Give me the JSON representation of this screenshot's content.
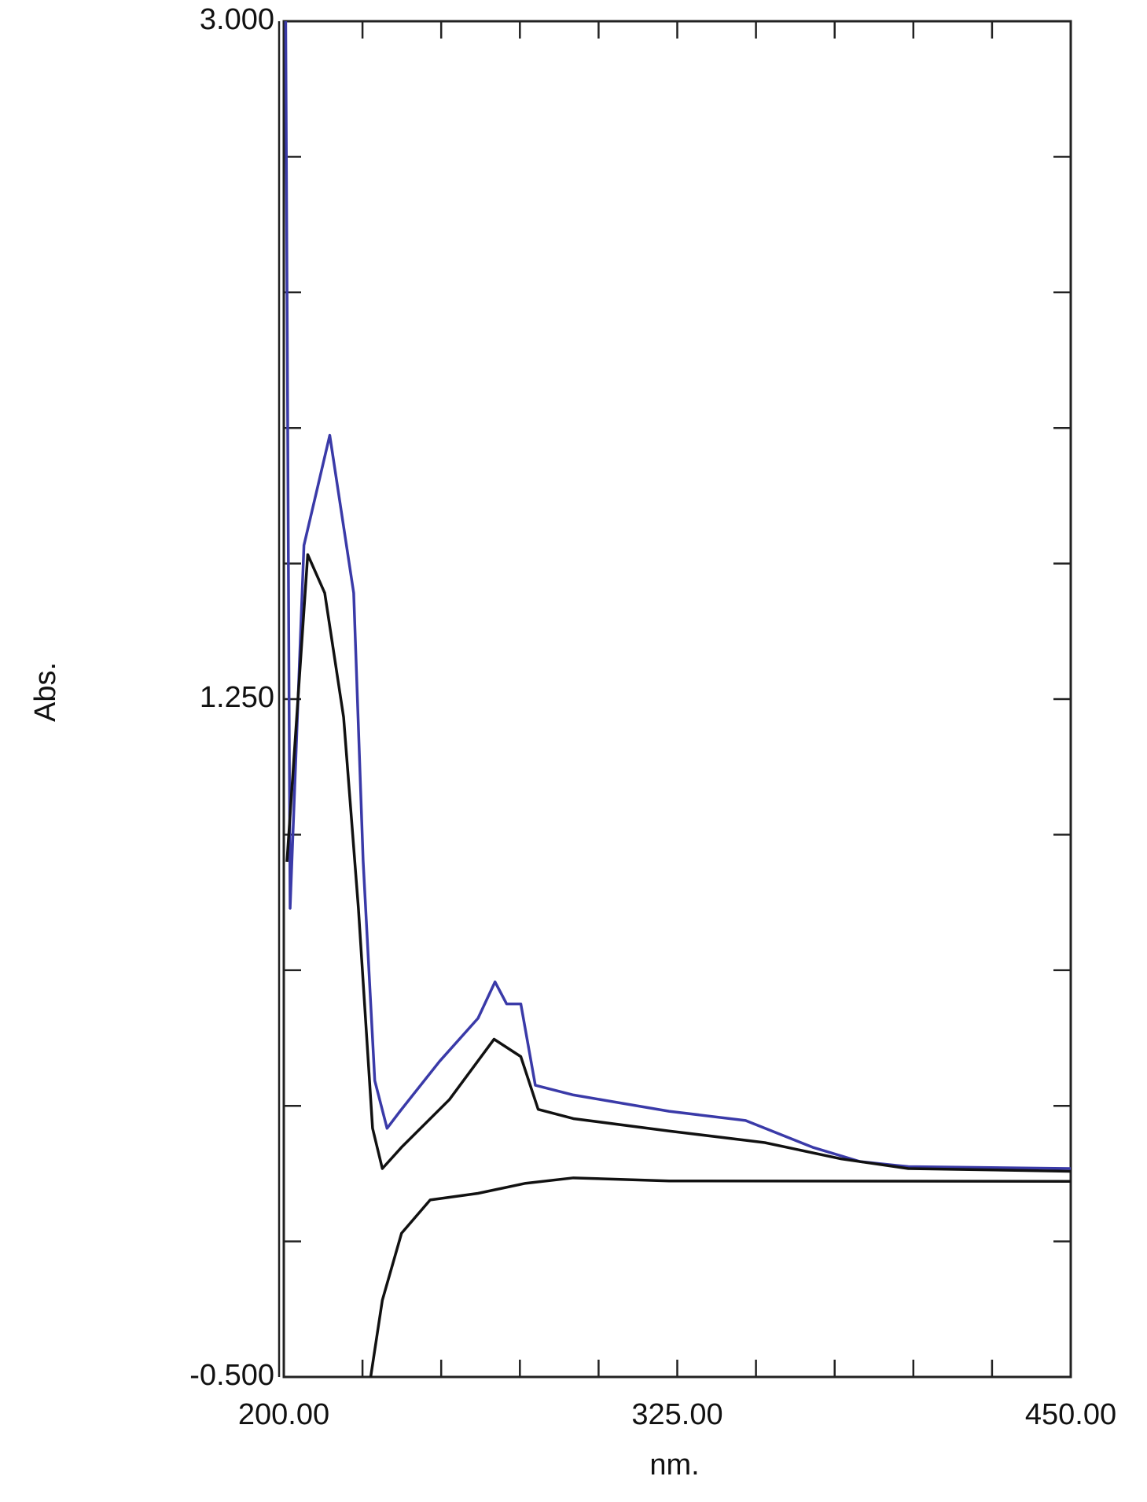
{
  "chart_data": {
    "type": "line",
    "x_label": "nm.",
    "y_label": "Abs.",
    "xlim": [
      200,
      450
    ],
    "xticks": [
      {
        "value": 200,
        "label": "200.00"
      },
      {
        "value": 325,
        "label": "325.00"
      },
      {
        "value": 450,
        "label": "450.00"
      }
    ],
    "xminor_ticks": [
      225,
      250,
      275,
      300,
      350,
      375,
      400,
      425
    ],
    "ylim": [
      -0.5,
      3.0
    ],
    "yticks": [
      {
        "value": 3.0,
        "label": "3.000"
      },
      {
        "value": 1.25,
        "label": "1.250"
      },
      {
        "value": -0.5,
        "label": "-0.500"
      }
    ],
    "yminor_ticks": [
      2.65,
      2.3,
      1.95,
      1.6,
      0.9,
      0.55,
      0.2,
      -0.15
    ],
    "series": [
      {
        "color": "#3a3aa8",
        "x": [
          200.6,
          202,
          206.4,
          214.6,
          222.2,
          225.2,
          228.9,
          232.8,
          237.4,
          249.5,
          261.7,
          267.1,
          270.8,
          275.3,
          279.9,
          292,
          322.4,
          346.7,
          368,
          383.1,
          398.4,
          450
        ],
        "values": [
          3.0,
          0.71,
          1.647,
          1.931,
          1.524,
          0.833,
          0.265,
          0.142,
          0.191,
          0.315,
          0.426,
          0.52,
          0.463,
          0.463,
          0.253,
          0.228,
          0.186,
          0.162,
          0.093,
          0.056,
          0.043,
          0.038
        ]
      },
      {
        "color": "#111111",
        "x": [
          201,
          207.6,
          213,
          219,
          223.7,
          228.2,
          231.3,
          237.4,
          252.6,
          266.8,
          275.3,
          280.8,
          292,
          322.4,
          352.8,
          377.1,
          398.4,
          450
        ],
        "values": [
          0.83,
          1.623,
          1.524,
          1.203,
          0.71,
          0.142,
          0.038,
          0.093,
          0.216,
          0.372,
          0.327,
          0.191,
          0.167,
          0.135,
          0.105,
          0.063,
          0.038,
          0.031
        ]
      },
      {
        "color": "#111111",
        "x": [
          227.6,
          231.3,
          237.4,
          246.5,
          261.7,
          276.8,
          292,
          322.4,
          450
        ],
        "values": [
          -0.5,
          -0.302,
          -0.129,
          -0.043,
          -0.026,
          0.0,
          0.014,
          0.006,
          0.005
        ]
      }
    ]
  }
}
